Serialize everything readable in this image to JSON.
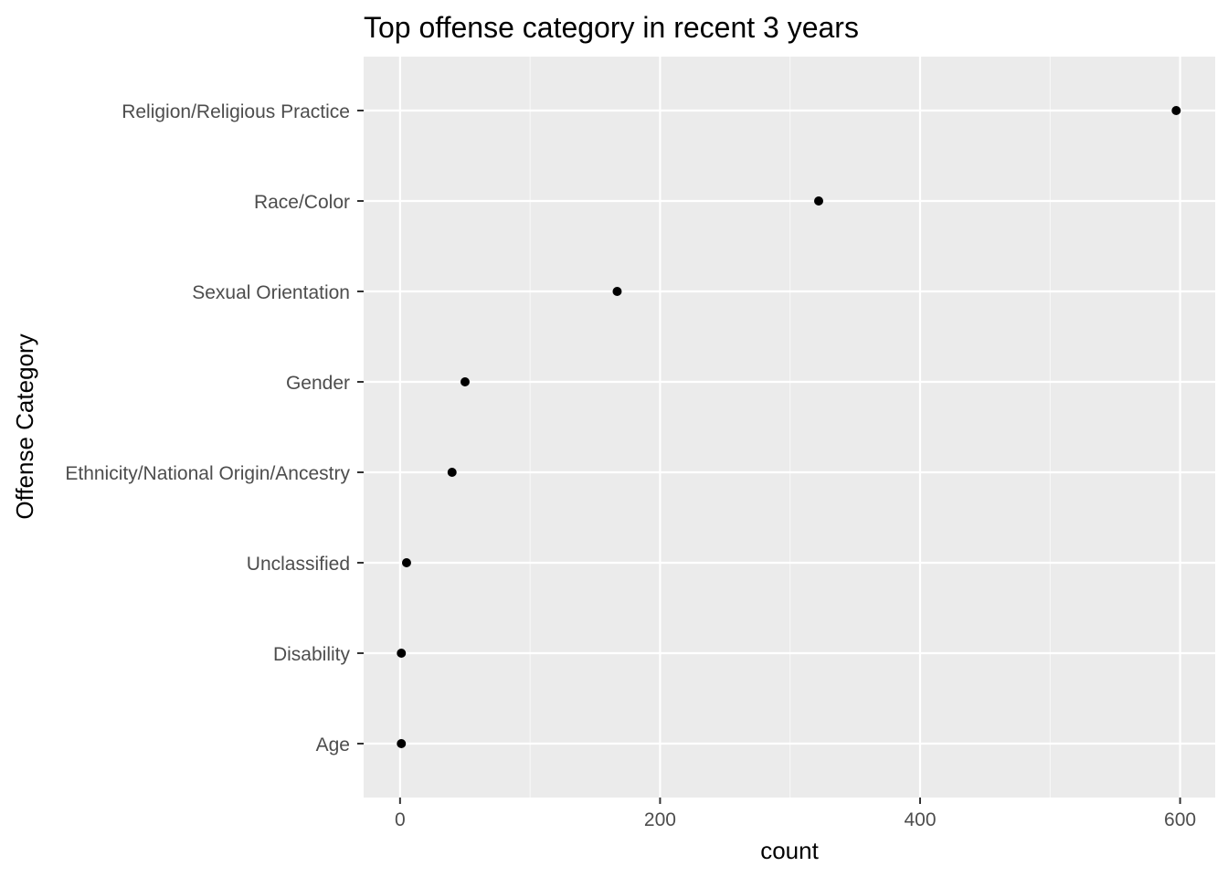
{
  "chart_data": {
    "type": "scatter",
    "title": "Top offense category in recent 3 years",
    "xlabel": "count",
    "ylabel": "Offense Category",
    "categories": [
      "Religion/Religious Practice",
      "Race/Color",
      "Sexual Orientation",
      "Gender",
      "Ethnicity/National Origin/Ancestry",
      "Unclassified",
      "Disability",
      "Age"
    ],
    "values": [
      597,
      322,
      167,
      50,
      40,
      5,
      1,
      1
    ],
    "x_ticks": [
      0,
      200,
      400,
      600
    ],
    "xlim": [
      -28,
      627
    ],
    "grid": true,
    "legend": "none",
    "colors": {
      "panel_background": "#ebebeb",
      "grid_major": "#ffffff",
      "grid_minor": "#f7f7f7",
      "point": "#000000",
      "tick_text": "#4d4d4d",
      "tick_mark": "#333333"
    }
  }
}
